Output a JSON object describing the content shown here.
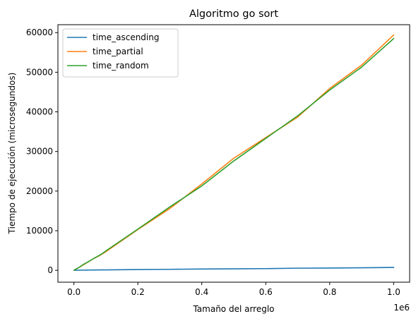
{
  "chart_data": {
    "type": "line",
    "title": "Algoritmo go sort",
    "xlabel": "Tamaño del arreglo",
    "ylabel": "Tiempo de ejecución (microsegundos)",
    "x_offset_label": "1e6",
    "xlim": [
      -50000,
      1050000
    ],
    "ylim": [
      -3000,
      62000
    ],
    "x_ticks": [
      0,
      200000,
      400000,
      600000,
      800000,
      1000000
    ],
    "x_tick_labels": [
      "0.0",
      "0.2",
      "0.4",
      "0.6",
      "0.8",
      "1.0"
    ],
    "y_ticks": [
      0,
      10000,
      20000,
      30000,
      40000,
      50000,
      60000
    ],
    "y_tick_labels": [
      "0",
      "10000",
      "20000",
      "30000",
      "40000",
      "50000",
      "60000"
    ],
    "legend_position": "upper-left",
    "grid": false,
    "x": [
      1000,
      10000,
      20000,
      30000,
      40000,
      50000,
      60000,
      70000,
      80000,
      90000,
      100000,
      200000,
      300000,
      400000,
      500000,
      600000,
      700000,
      800000,
      900000,
      1000000
    ],
    "series": [
      {
        "name": "time_ascending",
        "color": "#1f77b4",
        "values": [
          4,
          30,
          40,
          50,
          60,
          70,
          80,
          90,
          100,
          110,
          100,
          190,
          250,
          330,
          380,
          430,
          540,
          570,
          640,
          720
        ]
      },
      {
        "name": "time_partial",
        "color": "#ff7f0e",
        "values": [
          50,
          450,
          900,
          1400,
          1900,
          2400,
          2900,
          3300,
          3700,
          4200,
          4700,
          10300,
          15600,
          21800,
          28300,
          33500,
          38700,
          45900,
          51800,
          59400
        ]
      },
      {
        "name": "time_random",
        "color": "#2ca02c",
        "values": [
          50,
          450,
          950,
          1500,
          1950,
          2400,
          2900,
          3350,
          3800,
          4300,
          4900,
          10400,
          16000,
          21300,
          27600,
          33300,
          39000,
          45500,
          51300,
          58500
        ]
      }
    ]
  }
}
